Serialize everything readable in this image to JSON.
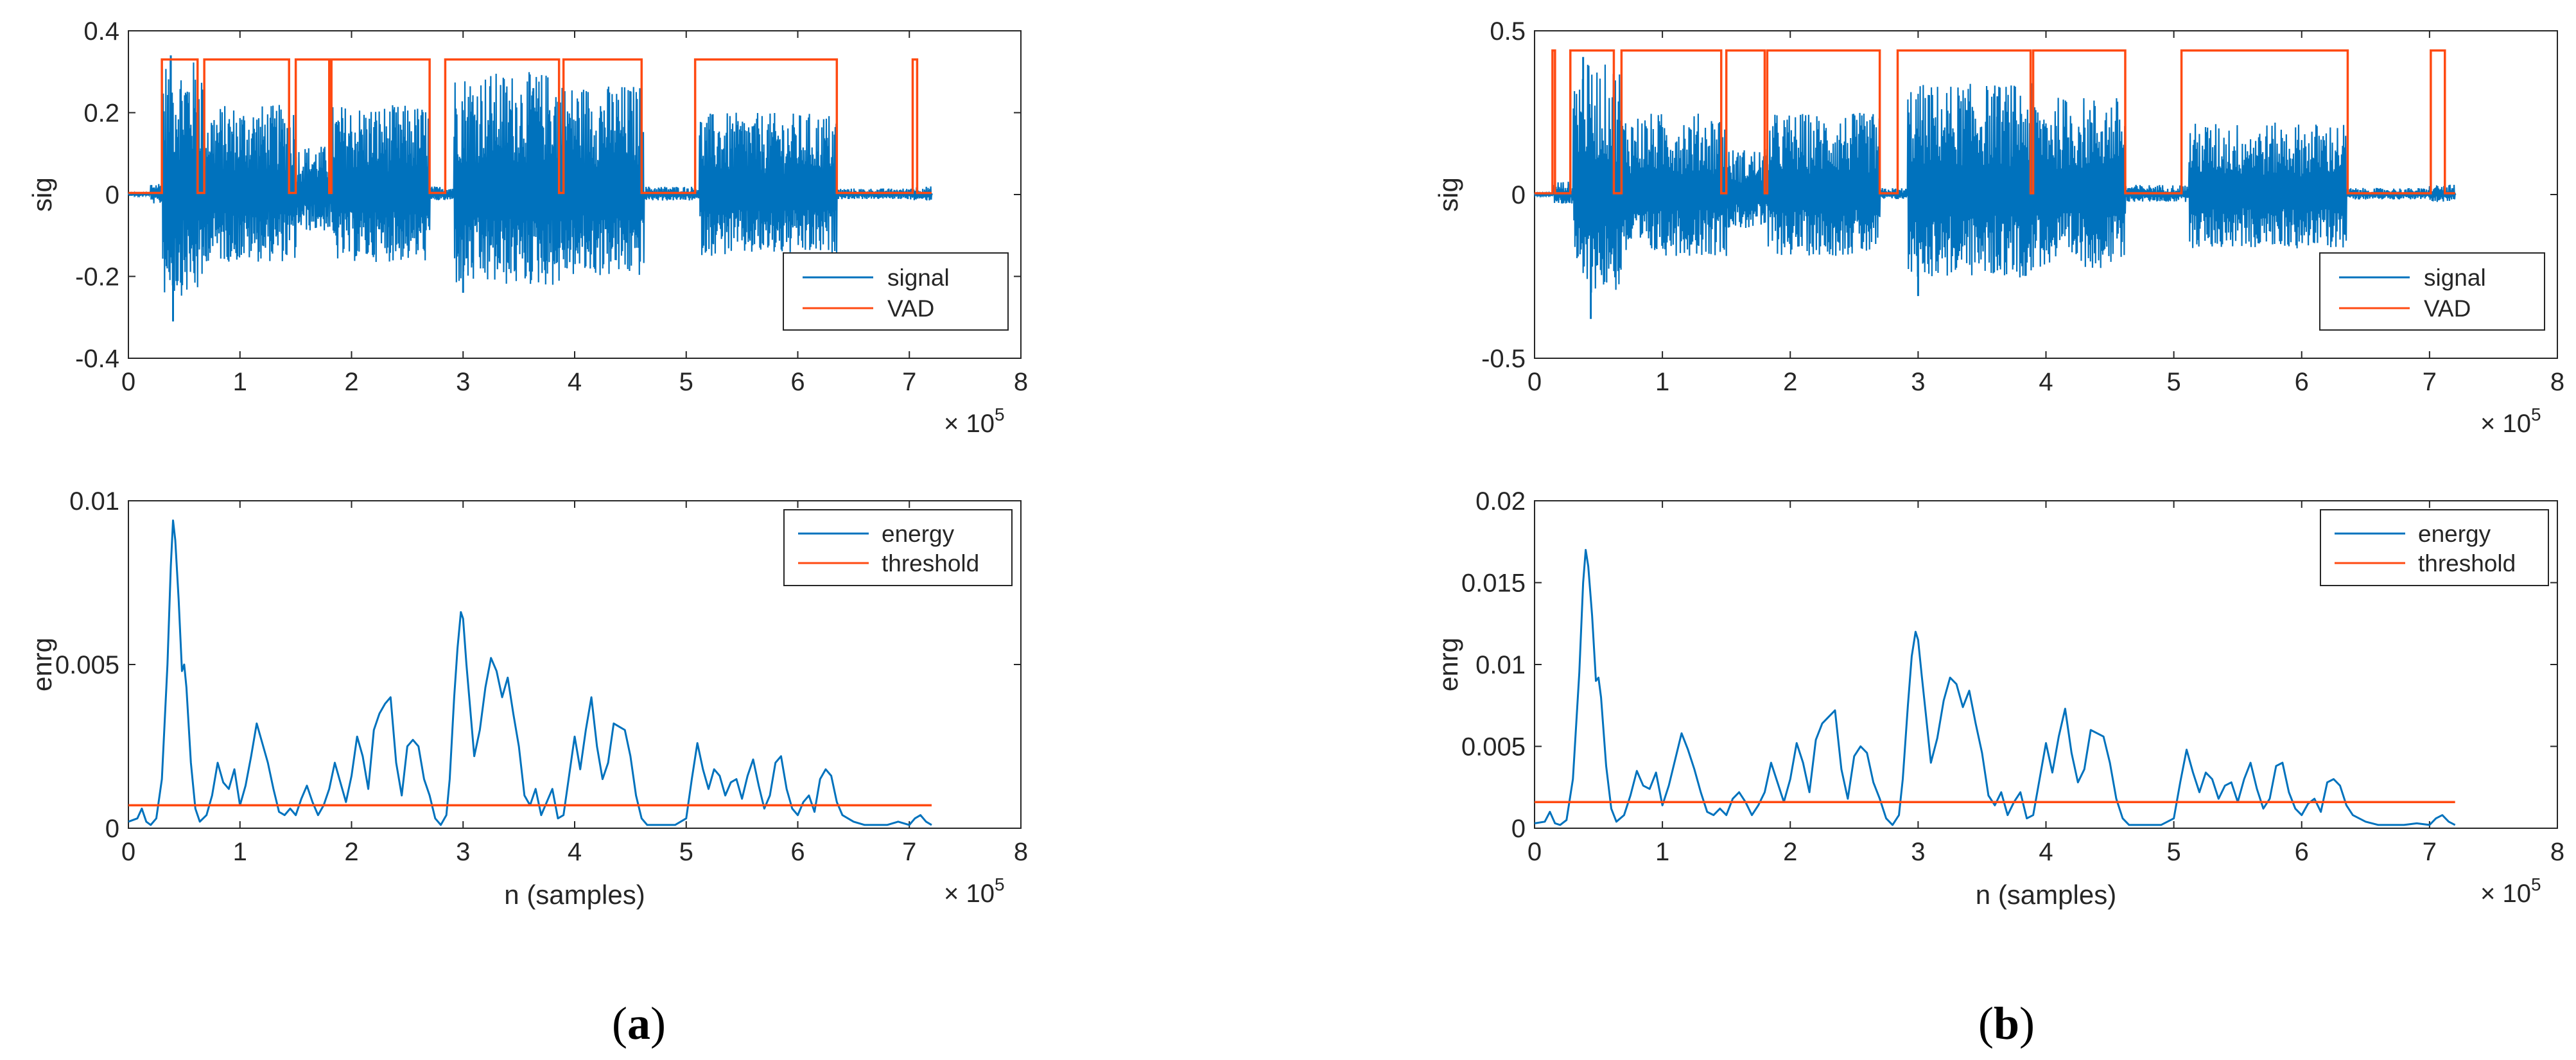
{
  "colors": {
    "signal": "#0072bd",
    "vad": "#ff4a12",
    "axis": "#262626"
  },
  "captions": {
    "a_open": "(",
    "a_letter": "a",
    "a_close": ")",
    "b_open": "(",
    "b_letter": "b",
    "b_close": ")"
  },
  "chart_data": [
    {
      "id": "a-top",
      "type": "line",
      "ylabel": "sig",
      "xlabel": "",
      "xlim": [
        0,
        800000
      ],
      "ylim": [
        -0.4,
        0.4
      ],
      "xticks": [
        0,
        100000,
        200000,
        300000,
        400000,
        500000,
        600000,
        700000,
        800000
      ],
      "xtick_labels": [
        "0",
        "1",
        "2",
        "3",
        "4",
        "5",
        "6",
        "7",
        "8"
      ],
      "yticks": [
        -0.4,
        -0.2,
        0,
        0.2,
        0.4
      ],
      "ytick_labels": [
        "-0.4",
        "-0.2",
        "0",
        "0.2",
        "0.4"
      ],
      "exponent": {
        "base": "× 10",
        "power": "5"
      },
      "legend": {
        "position": "bottom-right",
        "entries": [
          "signal",
          "VAD"
        ]
      },
      "signal": {
        "name": "signal",
        "segments": [
          [
            20000,
            30000,
            0.03
          ],
          [
            30000,
            68000,
            0.33
          ],
          [
            68000,
            150000,
            0.22
          ],
          [
            150000,
            182000,
            0.12
          ],
          [
            182000,
            270000,
            0.22
          ],
          [
            270000,
            292000,
            0.02
          ],
          [
            292000,
            390000,
            0.3
          ],
          [
            390000,
            462000,
            0.27
          ],
          [
            462000,
            512000,
            0.02
          ],
          [
            512000,
            635000,
            0.2
          ],
          [
            635000,
            700000,
            0.015
          ],
          [
            700000,
            720000,
            0.02
          ]
        ],
        "peaks": [
          {
            "x": 38000,
            "y": 0.34
          },
          {
            "x": 40000,
            "y": -0.31
          },
          {
            "x": 300000,
            "y": -0.24
          },
          {
            "x": 363000,
            "y": 0.26
          }
        ]
      },
      "vad": {
        "name": "VAD",
        "low": 0.004,
        "high": 0.33,
        "x_start": 0,
        "x_end": 720000,
        "intervals": [
          [
            30000,
            62000
          ],
          [
            68000,
            144000
          ],
          [
            150000,
            180000
          ],
          [
            182000,
            270000
          ],
          [
            284000,
            386000
          ],
          [
            390000,
            460000
          ],
          [
            508000,
            635000
          ],
          [
            703000,
            707000
          ]
        ]
      }
    },
    {
      "id": "a-bottom",
      "type": "line",
      "ylabel": "enrg",
      "xlabel": "n (samples)",
      "xlim": [
        0,
        800000
      ],
      "ylim": [
        0,
        0.01
      ],
      "xticks": [
        0,
        100000,
        200000,
        300000,
        400000,
        500000,
        600000,
        700000,
        800000
      ],
      "xtick_labels": [
        "0",
        "1",
        "2",
        "3",
        "4",
        "5",
        "6",
        "7",
        "8"
      ],
      "yticks": [
        0,
        0.005,
        0.01
      ],
      "ytick_labels": [
        "0",
        "0.005",
        "0.01"
      ],
      "exponent": {
        "base": "× 10",
        "power": "5"
      },
      "legend": {
        "position": "top-right",
        "entries": [
          "energy",
          "threshold"
        ]
      },
      "energy": {
        "name": "energy",
        "x": [
          0,
          8000,
          12000,
          16000,
          20000,
          25000,
          30000,
          35000,
          38000,
          40000,
          42000,
          45000,
          48000,
          50000,
          52000,
          56000,
          60000,
          64000,
          70000,
          75000,
          80000,
          85000,
          90000,
          95000,
          100000,
          105000,
          110000,
          115000,
          120000,
          125000,
          130000,
          135000,
          140000,
          145000,
          150000,
          155000,
          160000,
          165000,
          170000,
          175000,
          180000,
          185000,
          190000,
          195000,
          200000,
          205000,
          210000,
          215000,
          220000,
          225000,
          230000,
          235000,
          240000,
          245000,
          250000,
          255000,
          260000,
          265000,
          270000,
          275000,
          280000,
          285000,
          288000,
          292000,
          295000,
          298000,
          300000,
          303000,
          306000,
          310000,
          315000,
          320000,
          325000,
          330000,
          335000,
          340000,
          345000,
          350000,
          355000,
          360000,
          365000,
          370000,
          375000,
          380000,
          385000,
          390000,
          395000,
          400000,
          405000,
          410000,
          415000,
          420000,
          425000,
          430000,
          435000,
          440000,
          445000,
          450000,
          455000,
          460000,
          465000,
          470000,
          480000,
          490000,
          500000,
          505000,
          510000,
          515000,
          520000,
          525000,
          530000,
          535000,
          540000,
          545000,
          550000,
          555000,
          560000,
          565000,
          570000,
          575000,
          580000,
          585000,
          590000,
          595000,
          600000,
          605000,
          610000,
          615000,
          620000,
          625000,
          630000,
          635000,
          640000,
          650000,
          660000,
          670000,
          680000,
          690000,
          700000,
          705000,
          710000,
          715000,
          720000
        ],
        "y": [
          0.0002,
          0.0003,
          0.0006,
          0.0002,
          0.0001,
          0.0003,
          0.0015,
          0.005,
          0.008,
          0.0094,
          0.0088,
          0.007,
          0.0048,
          0.005,
          0.0043,
          0.002,
          0.0006,
          0.0002,
          0.0004,
          0.001,
          0.002,
          0.0014,
          0.0012,
          0.0018,
          0.0007,
          0.0013,
          0.0022,
          0.0032,
          0.0026,
          0.002,
          0.0012,
          0.0005,
          0.0004,
          0.0006,
          0.0004,
          0.0009,
          0.0013,
          0.0008,
          0.0004,
          0.0007,
          0.0012,
          0.002,
          0.0014,
          0.0008,
          0.0016,
          0.0028,
          0.0022,
          0.0012,
          0.003,
          0.0035,
          0.0038,
          0.004,
          0.002,
          0.001,
          0.0025,
          0.0027,
          0.0025,
          0.0015,
          0.001,
          0.0003,
          0.0001,
          0.0004,
          0.0015,
          0.004,
          0.0055,
          0.0066,
          0.0064,
          0.005,
          0.0038,
          0.0022,
          0.003,
          0.0043,
          0.0052,
          0.0048,
          0.004,
          0.0046,
          0.0035,
          0.0025,
          0.001,
          0.0007,
          0.0012,
          0.0004,
          0.0008,
          0.0012,
          0.0003,
          0.0004,
          0.0016,
          0.0028,
          0.0018,
          0.003,
          0.004,
          0.0025,
          0.0015,
          0.002,
          0.0032,
          0.0031,
          0.003,
          0.0022,
          0.001,
          0.0003,
          0.0001,
          0.0001,
          0.0001,
          0.0001,
          0.0003,
          0.0015,
          0.0026,
          0.0018,
          0.0012,
          0.0018,
          0.0016,
          0.001,
          0.0014,
          0.0015,
          0.0009,
          0.0016,
          0.0021,
          0.0013,
          0.0006,
          0.001,
          0.002,
          0.0022,
          0.0012,
          0.0006,
          0.0004,
          0.0008,
          0.001,
          0.0005,
          0.0015,
          0.0018,
          0.0016,
          0.0008,
          0.0004,
          0.0002,
          0.0001,
          0.0001,
          0.0001,
          0.0002,
          0.0001,
          0.0003,
          0.0004,
          0.0002,
          0.0001
        ]
      },
      "threshold": {
        "name": "threshold",
        "y": 0.0007,
        "x_start": 0,
        "x_end": 720000
      }
    },
    {
      "id": "b-top",
      "type": "line",
      "ylabel": "sig",
      "xlabel": "",
      "xlim": [
        0,
        800000
      ],
      "ylim": [
        -0.5,
        0.5
      ],
      "xticks": [
        0,
        100000,
        200000,
        300000,
        400000,
        500000,
        600000,
        700000,
        800000
      ],
      "xtick_labels": [
        "0",
        "1",
        "2",
        "3",
        "4",
        "5",
        "6",
        "7",
        "8"
      ],
      "yticks": [
        -0.5,
        0,
        0.5
      ],
      "ytick_labels": [
        "-0.5",
        "0",
        "0.5"
      ],
      "exponent": {
        "base": "× 10",
        "power": "5"
      },
      "legend": {
        "position": "bottom-right",
        "entries": [
          "signal",
          "VAD"
        ]
      },
      "signal": {
        "name": "signal",
        "segments": [
          [
            15000,
            30000,
            0.04
          ],
          [
            30000,
            68000,
            0.4
          ],
          [
            68000,
            150000,
            0.25
          ],
          [
            150000,
            182000,
            0.14
          ],
          [
            182000,
            270000,
            0.25
          ],
          [
            270000,
            292000,
            0.02
          ],
          [
            292000,
            390000,
            0.34
          ],
          [
            390000,
            462000,
            0.3
          ],
          [
            462000,
            512000,
            0.03
          ],
          [
            512000,
            635000,
            0.22
          ],
          [
            635000,
            700000,
            0.02
          ],
          [
            700000,
            720000,
            0.03
          ]
        ],
        "peaks": [
          {
            "x": 38000,
            "y": 0.42
          },
          {
            "x": 44000,
            "y": -0.38
          },
          {
            "x": 300000,
            "y": -0.31
          },
          {
            "x": 362000,
            "y": 0.3
          }
        ]
      },
      "vad": {
        "name": "VAD",
        "low": 0.004,
        "high": 0.44,
        "x_start": 0,
        "x_end": 720000,
        "intervals": [
          [
            14000,
            16000
          ],
          [
            28000,
            62000
          ],
          [
            68000,
            146000
          ],
          [
            150000,
            180000
          ],
          [
            182000,
            270000
          ],
          [
            284000,
            388000
          ],
          [
            390000,
            462000
          ],
          [
            506000,
            636000
          ],
          [
            701000,
            712000
          ]
        ]
      }
    },
    {
      "id": "b-bottom",
      "type": "line",
      "ylabel": "enrg",
      "xlabel": "n (samples)",
      "xlim": [
        0,
        800000
      ],
      "ylim": [
        0,
        0.02
      ],
      "xticks": [
        0,
        100000,
        200000,
        300000,
        400000,
        500000,
        600000,
        700000,
        800000
      ],
      "xtick_labels": [
        "0",
        "1",
        "2",
        "3",
        "4",
        "5",
        "6",
        "7",
        "8"
      ],
      "yticks": [
        0,
        0.005,
        0.01,
        0.015,
        0.02
      ],
      "ytick_labels": [
        "0",
        "0.005",
        "0.01",
        "0.015",
        "0.02"
      ],
      "exponent": {
        "base": "× 10",
        "power": "5"
      },
      "legend": {
        "position": "top-right",
        "entries": [
          "energy",
          "threshold"
        ]
      },
      "energy": {
        "name": "energy",
        "x": [
          0,
          8000,
          12000,
          16000,
          20000,
          25000,
          30000,
          35000,
          38000,
          40000,
          42000,
          45000,
          48000,
          50000,
          52000,
          56000,
          60000,
          64000,
          70000,
          75000,
          80000,
          85000,
          90000,
          95000,
          100000,
          105000,
          110000,
          115000,
          120000,
          125000,
          130000,
          135000,
          140000,
          145000,
          150000,
          155000,
          160000,
          165000,
          170000,
          175000,
          180000,
          185000,
          190000,
          195000,
          200000,
          205000,
          210000,
          215000,
          220000,
          225000,
          230000,
          235000,
          240000,
          245000,
          250000,
          255000,
          260000,
          265000,
          270000,
          275000,
          280000,
          285000,
          288000,
          292000,
          295000,
          298000,
          300000,
          303000,
          306000,
          310000,
          315000,
          320000,
          325000,
          330000,
          335000,
          340000,
          345000,
          350000,
          355000,
          360000,
          365000,
          370000,
          375000,
          380000,
          385000,
          390000,
          395000,
          400000,
          405000,
          410000,
          415000,
          420000,
          425000,
          430000,
          435000,
          440000,
          445000,
          450000,
          455000,
          460000,
          465000,
          470000,
          480000,
          490000,
          500000,
          505000,
          510000,
          515000,
          520000,
          525000,
          530000,
          535000,
          540000,
          545000,
          550000,
          555000,
          560000,
          565000,
          570000,
          575000,
          580000,
          585000,
          590000,
          595000,
          600000,
          605000,
          610000,
          615000,
          620000,
          625000,
          630000,
          635000,
          640000,
          650000,
          660000,
          670000,
          680000,
          690000,
          700000,
          705000,
          710000,
          715000,
          720000
        ],
        "y": [
          0.0003,
          0.0004,
          0.001,
          0.0003,
          0.0002,
          0.0005,
          0.003,
          0.0095,
          0.015,
          0.017,
          0.016,
          0.013,
          0.009,
          0.0092,
          0.008,
          0.0038,
          0.0012,
          0.0004,
          0.0008,
          0.002,
          0.0035,
          0.0026,
          0.0024,
          0.0034,
          0.0014,
          0.0026,
          0.0042,
          0.0058,
          0.0048,
          0.0036,
          0.0022,
          0.001,
          0.0008,
          0.0012,
          0.0008,
          0.0018,
          0.0022,
          0.0016,
          0.0008,
          0.0014,
          0.0022,
          0.004,
          0.0028,
          0.0016,
          0.003,
          0.0052,
          0.004,
          0.0022,
          0.0054,
          0.0064,
          0.0068,
          0.0072,
          0.0036,
          0.0018,
          0.0044,
          0.005,
          0.0046,
          0.0028,
          0.0018,
          0.0006,
          0.0002,
          0.0008,
          0.003,
          0.0075,
          0.0105,
          0.012,
          0.0115,
          0.0092,
          0.007,
          0.004,
          0.0055,
          0.0078,
          0.0092,
          0.0088,
          0.0074,
          0.0084,
          0.0064,
          0.0046,
          0.002,
          0.0014,
          0.0022,
          0.0008,
          0.0016,
          0.0022,
          0.0006,
          0.0008,
          0.003,
          0.0052,
          0.0034,
          0.0056,
          0.0073,
          0.0046,
          0.0028,
          0.0036,
          0.006,
          0.0058,
          0.0056,
          0.004,
          0.0018,
          0.0006,
          0.0002,
          0.0002,
          0.0002,
          0.0002,
          0.0006,
          0.0028,
          0.0048,
          0.0034,
          0.0022,
          0.0034,
          0.003,
          0.0018,
          0.0026,
          0.0028,
          0.0016,
          0.003,
          0.004,
          0.0024,
          0.0012,
          0.0018,
          0.0038,
          0.004,
          0.0022,
          0.0012,
          0.0008,
          0.0015,
          0.0018,
          0.001,
          0.0028,
          0.003,
          0.0026,
          0.0014,
          0.0008,
          0.0004,
          0.0002,
          0.0002,
          0.0002,
          0.0003,
          0.0002,
          0.0006,
          0.0008,
          0.0004,
          0.0002
        ]
      },
      "threshold": {
        "name": "threshold",
        "y": 0.0016,
        "x_start": 0,
        "x_end": 720000
      }
    }
  ]
}
